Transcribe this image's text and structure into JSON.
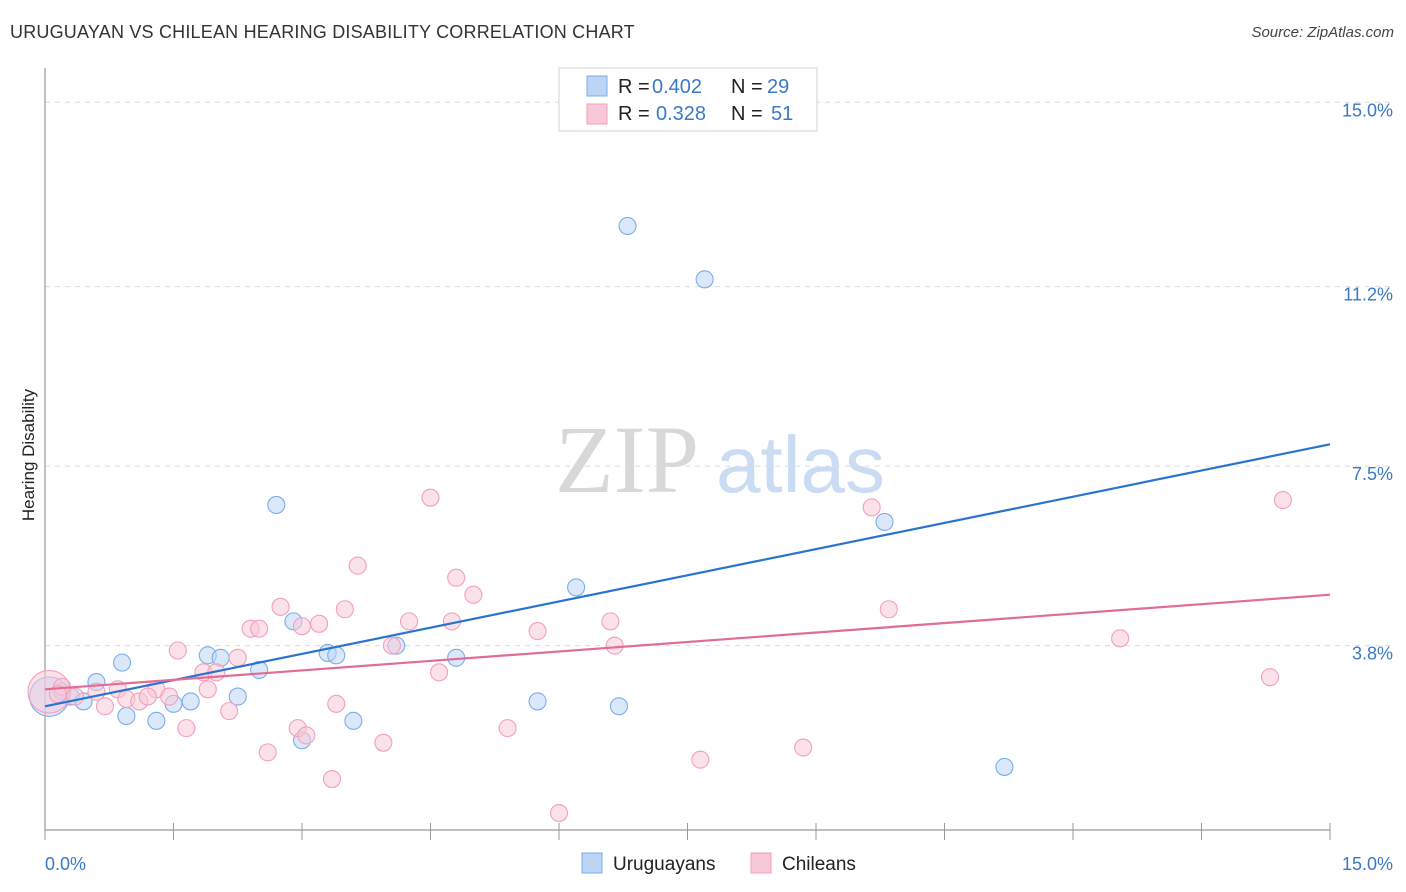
{
  "header": {
    "title": "URUGUAYAN VS CHILEAN HEARING DISABILITY CORRELATION CHART",
    "source": "Source: ZipAtlas.com"
  },
  "watermark": {
    "zip": "ZIP",
    "atlas": "atlas"
  },
  "colors": {
    "uruguayans": "#7aaee8",
    "uruguayans_fill": "#bcd5f5",
    "uruguayans_line": "#2a74d0",
    "chileans": "#f2a0bb",
    "chileans_fill": "#f8c8d8",
    "chileans_line": "#e06c98",
    "tick_label": "#3a78c9"
  },
  "legend_top": {
    "rows": [
      {
        "r_label": "R = ",
        "r_value": "0.402",
        "n_label": "N = ",
        "n_value": "29"
      },
      {
        "r_label": "R = ",
        "r_value": "0.328",
        "n_label": "N = ",
        "n_value": "51"
      }
    ]
  },
  "legend_bottom": {
    "uruguayans": "Uruguayans",
    "chileans": "Chileans"
  },
  "chart_data": {
    "type": "scatter",
    "title": "URUGUAYAN VS CHILEAN HEARING DISABILITY CORRELATION CHART",
    "xlabel": "",
    "ylabel": "Hearing Disability",
    "xlim": [
      0,
      15
    ],
    "ylim": [
      0,
      15.5
    ],
    "x_tick_labels": [
      "0.0%",
      "15.0%"
    ],
    "y_ticks": [
      3.8,
      7.5,
      11.2,
      15.0
    ],
    "y_tick_labels": [
      "3.8%",
      "7.5%",
      "11.2%",
      "15.0%"
    ],
    "grid": true,
    "series": [
      {
        "name": "Uruguayans",
        "R": 0.402,
        "N": 29,
        "trend": {
          "x": [
            0,
            15
          ],
          "y": [
            2.55,
            7.95
          ]
        },
        "points": [
          [
            0.05,
            2.75,
            24
          ],
          [
            0.3,
            2.75,
            10
          ],
          [
            0.45,
            2.65,
            10
          ],
          [
            0.6,
            3.05,
            10
          ],
          [
            0.9,
            3.45,
            10
          ],
          [
            0.95,
            2.35,
            10
          ],
          [
            1.3,
            2.25,
            10
          ],
          [
            1.5,
            2.6,
            10
          ],
          [
            1.7,
            2.65,
            10
          ],
          [
            1.9,
            3.6,
            10
          ],
          [
            2.05,
            3.55,
            10
          ],
          [
            2.25,
            2.75,
            10
          ],
          [
            2.5,
            3.3,
            10
          ],
          [
            2.7,
            6.7,
            10
          ],
          [
            2.9,
            4.3,
            10
          ],
          [
            3.0,
            1.85,
            10
          ],
          [
            3.3,
            3.65,
            10
          ],
          [
            3.4,
            3.6,
            10
          ],
          [
            3.6,
            2.25,
            10
          ],
          [
            4.1,
            3.8,
            10
          ],
          [
            4.8,
            3.55,
            10
          ],
          [
            5.75,
            2.65,
            10
          ],
          [
            6.2,
            5.0,
            10
          ],
          [
            6.7,
            2.55,
            10
          ],
          [
            6.8,
            12.45,
            10
          ],
          [
            7.7,
            11.35,
            10
          ],
          [
            9.8,
            6.35,
            10
          ],
          [
            11.2,
            1.3,
            10
          ],
          [
            0.2,
            2.85,
            10
          ]
        ]
      },
      {
        "name": "Chileans",
        "R": 0.328,
        "N": 51,
        "trend": {
          "x": [
            0,
            15
          ],
          "y": [
            2.9,
            4.85
          ]
        },
        "points": [
          [
            0.05,
            2.85,
            26
          ],
          [
            0.2,
            2.95,
            10
          ],
          [
            0.35,
            2.75,
            10
          ],
          [
            0.6,
            2.85,
            10
          ],
          [
            0.7,
            2.55,
            10
          ],
          [
            0.85,
            2.9,
            10
          ],
          [
            0.95,
            2.7,
            10
          ],
          [
            1.1,
            2.65,
            10
          ],
          [
            1.3,
            2.9,
            10
          ],
          [
            1.45,
            2.75,
            10
          ],
          [
            1.55,
            3.7,
            10
          ],
          [
            1.65,
            2.1,
            10
          ],
          [
            1.85,
            3.25,
            10
          ],
          [
            1.9,
            2.9,
            10
          ],
          [
            2.0,
            3.25,
            10
          ],
          [
            2.15,
            2.45,
            10
          ],
          [
            2.25,
            3.55,
            10
          ],
          [
            2.4,
            4.15,
            10
          ],
          [
            2.5,
            4.15,
            10
          ],
          [
            2.6,
            1.6,
            10
          ],
          [
            2.75,
            4.6,
            10
          ],
          [
            2.95,
            2.1,
            10
          ],
          [
            3.0,
            4.2,
            10
          ],
          [
            3.05,
            1.95,
            10
          ],
          [
            3.2,
            4.25,
            10
          ],
          [
            3.35,
            1.05,
            10
          ],
          [
            3.4,
            2.6,
            10
          ],
          [
            3.5,
            4.55,
            10
          ],
          [
            3.65,
            5.45,
            10
          ],
          [
            3.95,
            1.8,
            10
          ],
          [
            4.05,
            3.8,
            10
          ],
          [
            4.25,
            4.3,
            10
          ],
          [
            4.5,
            6.85,
            10
          ],
          [
            4.6,
            3.25,
            10
          ],
          [
            4.75,
            4.3,
            10
          ],
          [
            4.8,
            5.2,
            10
          ],
          [
            5.0,
            4.85,
            10
          ],
          [
            5.4,
            2.1,
            10
          ],
          [
            5.75,
            4.1,
            10
          ],
          [
            6.0,
            0.35,
            10
          ],
          [
            6.6,
            4.3,
            10
          ],
          [
            6.65,
            3.8,
            10
          ],
          [
            7.65,
            1.45,
            10
          ],
          [
            8.85,
            1.7,
            10
          ],
          [
            9.65,
            6.65,
            10
          ],
          [
            9.85,
            4.55,
            10
          ],
          [
            12.55,
            3.95,
            10
          ],
          [
            14.3,
            3.15,
            10
          ],
          [
            14.45,
            6.8,
            10
          ],
          [
            1.2,
            2.75,
            10
          ],
          [
            0.15,
            2.8,
            10
          ]
        ]
      }
    ]
  }
}
